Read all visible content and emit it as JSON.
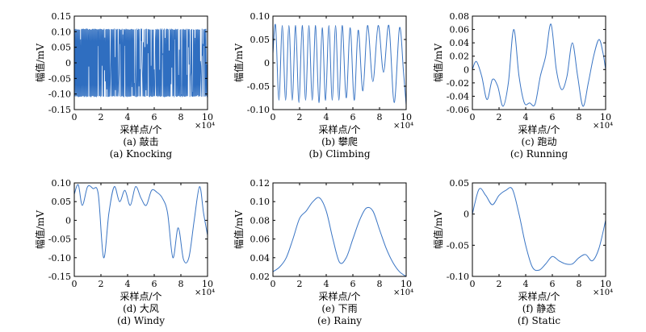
{
  "figure": {
    "exponent_label": "×10⁴",
    "panels": [
      {
        "id": "a",
        "caption_zh": "(a) 敲击",
        "caption_en": "(a) Knocking"
      },
      {
        "id": "b",
        "caption_zh": "(b) 攀爬",
        "caption_en": "(b) Climbing"
      },
      {
        "id": "c",
        "caption_zh": "(c) 跑动",
        "caption_en": "(c) Running"
      },
      {
        "id": "d",
        "caption_zh": "(d) 大风",
        "caption_en": "(d) Windy"
      },
      {
        "id": "e",
        "caption_zh": "(e) 下雨",
        "caption_en": "(e) Rainy"
      },
      {
        "id": "f",
        "caption_zh": "(f) 静态",
        "caption_en": "(f) Static"
      }
    ]
  },
  "chart_data": [
    {
      "type": "line",
      "title": "(a) 敲击 / Knocking",
      "xlabel": "采样点/个",
      "ylabel": "幅值/mV",
      "x_multiplier": "×10⁴",
      "xlim": [
        0,
        10
      ],
      "ylim": [
        -0.15,
        0.15
      ],
      "xticks": [
        "0",
        "2",
        "4",
        "6",
        "8",
        "10"
      ],
      "yticks": [
        "-0.15",
        "-0.10",
        "-0.05",
        "0",
        "0.05",
        "0.10",
        "0.15"
      ],
      "color": "#2f6ec0",
      "pattern": "dense",
      "envelope": [
        -0.11,
        0.11
      ],
      "series": [
        {
          "name": "Knocking",
          "x": [
            0,
            1,
            2,
            3,
            4,
            5,
            6,
            7,
            8,
            9,
            10
          ],
          "y": [
            0.11,
            -0.11,
            0.11,
            -0.11,
            0.11,
            -0.11,
            0.11,
            -0.11,
            0.11,
            -0.11,
            0.11
          ]
        }
      ]
    },
    {
      "type": "line",
      "title": "(b) 攀爬 / Climbing",
      "xlabel": "采样点/个",
      "ylabel": "幅值/mV",
      "x_multiplier": "×10⁴",
      "xlim": [
        0,
        10
      ],
      "ylim": [
        -0.1,
        0.1
      ],
      "xticks": [
        "0",
        "2",
        "4",
        "6",
        "8",
        "10"
      ],
      "yticks": [
        "-0.10",
        "-0.05",
        "0",
        "0.05",
        "0.10"
      ],
      "color": "#3a75c4",
      "pattern": "smooth",
      "series": [
        {
          "name": "Climbing",
          "x": [
            0,
            0.2,
            0.45,
            0.7,
            0.95,
            1.2,
            1.45,
            1.7,
            1.95,
            2.2,
            2.45,
            2.7,
            2.95,
            3.2,
            3.45,
            3.7,
            3.95,
            4.2,
            4.45,
            4.7,
            4.95,
            5.2,
            5.5,
            5.8,
            6.1,
            6.4,
            6.75,
            7.1,
            7.5,
            7.9,
            8.3,
            8.7,
            9.1,
            9.5,
            9.8,
            10
          ],
          "y": [
            0.02,
            0.08,
            -0.08,
            0.08,
            -0.08,
            0.08,
            -0.08,
            0.08,
            -0.085,
            0.08,
            -0.08,
            0.08,
            -0.08,
            0.08,
            -0.085,
            0.075,
            -0.08,
            0.08,
            -0.08,
            0.08,
            -0.08,
            0.08,
            -0.075,
            0.075,
            -0.08,
            0.07,
            -0.06,
            0.08,
            -0.04,
            0.08,
            -0.02,
            0.08,
            -0.085,
            0.075,
            -0.02,
            -0.09
          ]
        }
      ]
    },
    {
      "type": "line",
      "title": "(c) 跑动 / Running",
      "xlabel": "采样点/个",
      "ylabel": "幅值/mV",
      "x_multiplier": "×10⁴",
      "xlim": [
        0,
        10
      ],
      "ylim": [
        -0.06,
        0.08
      ],
      "xticks": [
        "0",
        "2",
        "4",
        "6",
        "8",
        "10"
      ],
      "yticks": [
        "-0.06",
        "-0.04",
        "-0.02",
        "0",
        "0.02",
        "0.04",
        "0.06",
        "0.08"
      ],
      "color": "#3a75c4",
      "pattern": "smooth",
      "series": [
        {
          "name": "Running",
          "x": [
            0,
            0.3,
            0.7,
            1.1,
            1.5,
            1.9,
            2.3,
            2.7,
            3.1,
            3.5,
            3.9,
            4.3,
            4.7,
            5.1,
            5.5,
            5.9,
            6.3,
            6.7,
            7.1,
            7.5,
            7.9,
            8.3,
            8.7,
            9.1,
            9.5,
            9.8,
            10
          ],
          "y": [
            0,
            0.012,
            -0.01,
            -0.045,
            -0.015,
            -0.025,
            -0.055,
            -0.02,
            0.06,
            -0.01,
            -0.05,
            -0.05,
            -0.052,
            -0.01,
            0.02,
            0.068,
            0.0,
            -0.03,
            -0.01,
            0.04,
            -0.01,
            -0.055,
            -0.02,
            0.02,
            0.045,
            0.025,
            0.0
          ]
        }
      ]
    },
    {
      "type": "line",
      "title": "(d) 大风 / Windy",
      "xlabel": "采样点/个",
      "ylabel": "幅值/mV",
      "x_multiplier": "×10⁴",
      "xlim": [
        0,
        10
      ],
      "ylim": [
        -0.15,
        0.1
      ],
      "xticks": [
        "0",
        "2",
        "4",
        "6",
        "8",
        "10"
      ],
      "yticks": [
        "-0.15",
        "-0.10",
        "-0.05",
        "0",
        "0.05",
        "0.10"
      ],
      "color": "#3a75c4",
      "pattern": "smooth",
      "series": [
        {
          "name": "Windy",
          "x": [
            0,
            0.3,
            0.6,
            1.0,
            1.4,
            1.8,
            2.2,
            2.6,
            3.0,
            3.4,
            3.8,
            4.2,
            4.6,
            5.0,
            5.4,
            5.8,
            6.2,
            6.6,
            7.0,
            7.4,
            7.8,
            8.2,
            8.6,
            9.0,
            9.4,
            9.7,
            10
          ],
          "y": [
            0.07,
            0.095,
            0.04,
            0.09,
            0.085,
            0.07,
            -0.1,
            0.02,
            0.09,
            0.05,
            0.08,
            0.04,
            0.09,
            0.06,
            0.04,
            0.08,
            0.075,
            0.06,
            0.02,
            -0.1,
            -0.02,
            -0.105,
            -0.1,
            0.0,
            0.09,
            0.02,
            -0.04
          ]
        }
      ]
    },
    {
      "type": "line",
      "title": "(e) 下雨 / Rainy",
      "xlabel": "采样点/个",
      "ylabel": "幅值/mV",
      "x_multiplier": "×10⁴",
      "xlim": [
        0,
        10
      ],
      "ylim": [
        0.02,
        0.12
      ],
      "xticks": [
        "0",
        "2",
        "4",
        "6",
        "8",
        "10"
      ],
      "yticks": [
        "0.02",
        "0.04",
        "0.06",
        "0.08",
        "0.10",
        "0.12"
      ],
      "color": "#3a75c4",
      "pattern": "smooth",
      "series": [
        {
          "name": "Rainy",
          "x": [
            0,
            0.5,
            1.0,
            1.5,
            2.0,
            2.5,
            3.0,
            3.5,
            4.0,
            4.5,
            5.0,
            5.5,
            6.0,
            6.5,
            7.0,
            7.5,
            8.0,
            8.5,
            9.0,
            9.5,
            10
          ],
          "y": [
            0.025,
            0.03,
            0.04,
            0.06,
            0.082,
            0.09,
            0.1,
            0.104,
            0.09,
            0.06,
            0.035,
            0.04,
            0.06,
            0.08,
            0.093,
            0.09,
            0.07,
            0.05,
            0.035,
            0.025,
            0.02
          ]
        }
      ]
    },
    {
      "type": "line",
      "title": "(f) 静态 / Static",
      "xlabel": "采样点/个",
      "ylabel": "幅值/mV",
      "x_multiplier": "×10⁴",
      "xlim": [
        0,
        10
      ],
      "ylim": [
        -0.1,
        0.05
      ],
      "xticks": [
        "0",
        "2",
        "4",
        "6",
        "8",
        "10"
      ],
      "yticks": [
        "-0.10",
        "-0.05",
        "0",
        "0.05"
      ],
      "color": "#3a75c4",
      "pattern": "smooth",
      "series": [
        {
          "name": "Static",
          "x": [
            0,
            0.5,
            1.0,
            1.5,
            2.0,
            2.5,
            3.0,
            3.5,
            4.0,
            4.5,
            5.0,
            5.5,
            6.0,
            6.5,
            7.0,
            7.5,
            8.0,
            8.5,
            9.0,
            9.5,
            10
          ],
          "y": [
            0.0,
            0.04,
            0.03,
            0.015,
            0.03,
            0.038,
            0.04,
            0.0,
            -0.05,
            -0.085,
            -0.09,
            -0.08,
            -0.068,
            -0.075,
            -0.08,
            -0.08,
            -0.07,
            -0.065,
            -0.075,
            -0.055,
            -0.01
          ]
        }
      ]
    }
  ]
}
